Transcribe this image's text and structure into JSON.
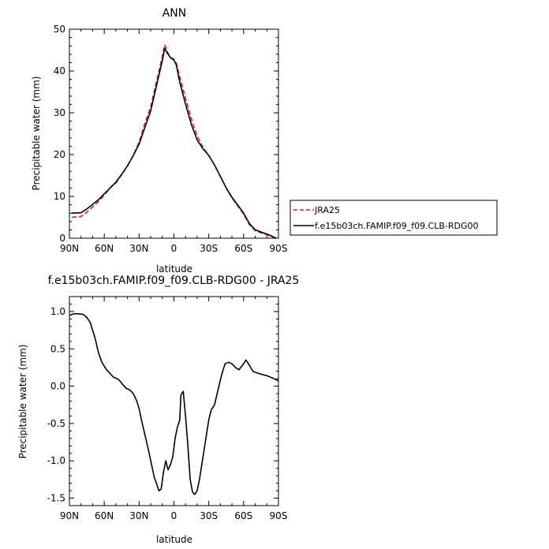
{
  "chart_data": [
    {
      "type": "line",
      "title": "ANN",
      "xlabel": "latitude",
      "ylabel": "Precipitable water (mm)",
      "xlim": [
        90,
        -90
      ],
      "ylim": [
        0,
        50
      ],
      "xticks": [
        90,
        60,
        30,
        0,
        -30,
        -60,
        -90
      ],
      "xtick_labels": [
        "90N",
        "60N",
        "30N",
        "0",
        "30S",
        "60S",
        "90S"
      ],
      "yticks": [
        0,
        10,
        20,
        30,
        40,
        50
      ],
      "ytick_labels": [
        "0",
        "10",
        "20",
        "30",
        "40",
        "50"
      ],
      "legend_position": "right",
      "series": [
        {
          "name": "JRA25",
          "color": "#e41a1c",
          "style": "dashed",
          "x": [
            88,
            80,
            75,
            70,
            65,
            60,
            55,
            50,
            45,
            40,
            35,
            30,
            25,
            20,
            15,
            10,
            8,
            5,
            3,
            0,
            -2,
            -5,
            -10,
            -15,
            -20,
            -25,
            -30,
            -35,
            -40,
            -45,
            -50,
            -55,
            -60,
            -65,
            -70,
            -75,
            -80,
            -85,
            -88
          ],
          "y": [
            5.0,
            5.2,
            6.2,
            7.5,
            8.8,
            10.3,
            12.0,
            13.2,
            15.2,
            17.3,
            19.8,
            23.0,
            27.5,
            31.5,
            37.5,
            43.5,
            46.3,
            44.2,
            43.3,
            42.8,
            42.0,
            38.5,
            33.5,
            28.5,
            24.5,
            21.7,
            19.8,
            17.5,
            14.8,
            12.0,
            9.6,
            7.7,
            5.8,
            3.2,
            1.8,
            1.3,
            0.8,
            0.3,
            0.0
          ]
        },
        {
          "name": "f.e15b03ch.FAMIP.f09_f09.CLB-RDG00",
          "color": "#000000",
          "style": "solid",
          "x": [
            88,
            80,
            75,
            70,
            65,
            60,
            55,
            50,
            45,
            40,
            35,
            30,
            25,
            20,
            15,
            10,
            8,
            5,
            3,
            0,
            -2,
            -5,
            -10,
            -15,
            -20,
            -25,
            -30,
            -35,
            -40,
            -45,
            -50,
            -55,
            -60,
            -65,
            -70,
            -75,
            -80,
            -85,
            -88
          ],
          "y": [
            6.0,
            6.1,
            7.0,
            8.1,
            9.2,
            10.6,
            12.0,
            13.4,
            15.3,
            17.3,
            19.8,
            22.5,
            26.5,
            30.5,
            36.5,
            42.5,
            45.4,
            44.0,
            43.2,
            42.6,
            41.5,
            37.3,
            32.1,
            27.2,
            23.5,
            21.4,
            19.8,
            17.5,
            14.8,
            12.0,
            9.8,
            7.9,
            6.0,
            3.5,
            2.0,
            1.5,
            1.0,
            0.4,
            0.0
          ]
        }
      ]
    },
    {
      "type": "line",
      "title": "f.e15b03ch.FAMIP.f09_f09.CLB-RDG00 - JRA25",
      "xlabel": "latitude",
      "ylabel": "Precipitable water (mm)",
      "xlim": [
        90,
        -90
      ],
      "ylim": [
        -1.6,
        1.2
      ],
      "xticks": [
        90,
        60,
        30,
        0,
        -30,
        -60,
        -90
      ],
      "xtick_labels": [
        "90N",
        "60N",
        "30N",
        "0",
        "30S",
        "60S",
        "90S"
      ],
      "yticks": [
        1.0,
        0.5,
        0.0,
        -0.5,
        -1.0,
        -1.5
      ],
      "ytick_labels": [
        "1.0",
        "0.5",
        "0.0",
        "-0.5",
        "-1.0",
        "-1.5"
      ],
      "series": [
        {
          "name": "",
          "color": "#000000",
          "style": "solid",
          "x": [
            90,
            86,
            82,
            78,
            75,
            72,
            70,
            68,
            65,
            62,
            58,
            55,
            52,
            50,
            47,
            44,
            41,
            38,
            35,
            32,
            30,
            28,
            25,
            22,
            20,
            17,
            15,
            13,
            11,
            9,
            7,
            5,
            3,
            1,
            -1,
            -3,
            -5,
            -6,
            -8,
            -10,
            -12,
            -14,
            -16,
            -18,
            -20,
            -22,
            -24,
            -26,
            -28,
            -30,
            -32,
            -35,
            -38,
            -41,
            -44,
            -47,
            -50,
            -53,
            -56,
            -59,
            -62,
            -65,
            -68,
            -71,
            -75,
            -80,
            -85,
            -90
          ],
          "y": [
            0.95,
            0.97,
            0.97,
            0.96,
            0.92,
            0.85,
            0.75,
            0.65,
            0.45,
            0.32,
            0.22,
            0.17,
            0.12,
            0.11,
            0.08,
            0.02,
            -0.03,
            -0.05,
            -0.1,
            -0.2,
            -0.3,
            -0.45,
            -0.65,
            -0.85,
            -1.0,
            -1.22,
            -1.3,
            -1.4,
            -1.38,
            -1.15,
            -1.0,
            -1.12,
            -1.05,
            -0.95,
            -0.7,
            -0.55,
            -0.45,
            -0.12,
            -0.07,
            -0.4,
            -0.8,
            -1.25,
            -1.42,
            -1.45,
            -1.4,
            -1.25,
            -1.05,
            -0.85,
            -0.65,
            -0.45,
            -0.32,
            -0.25,
            -0.05,
            0.15,
            0.3,
            0.32,
            0.3,
            0.25,
            0.22,
            0.28,
            0.35,
            0.28,
            0.2,
            0.18,
            0.16,
            0.14,
            0.11,
            0.07
          ]
        }
      ]
    }
  ]
}
